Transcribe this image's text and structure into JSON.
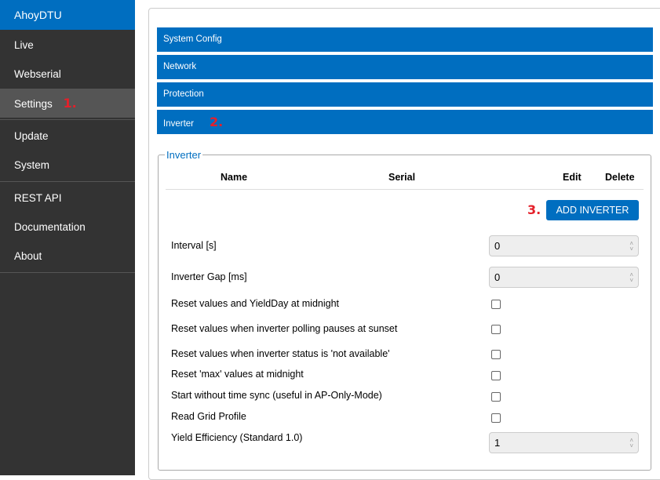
{
  "sidebar": {
    "brand": "AhoyDTU",
    "items": [
      {
        "label": "Live"
      },
      {
        "label": "Webserial"
      },
      {
        "label": "Settings",
        "step": "1."
      },
      {
        "label": "Update"
      },
      {
        "label": "System"
      },
      {
        "label": "REST API"
      },
      {
        "label": "Documentation"
      },
      {
        "label": "About"
      }
    ]
  },
  "sections": [
    {
      "label": "System Config"
    },
    {
      "label": "Network"
    },
    {
      "label": "Protection"
    },
    {
      "label": "Inverter",
      "step": "2."
    }
  ],
  "inverter": {
    "legend": "Inverter",
    "columns": [
      "Name",
      "Serial",
      "Edit",
      "Delete"
    ],
    "add_step": "3.",
    "add_label": "ADD INVERTER",
    "settings": [
      {
        "label": "Interval [s]",
        "value": "0"
      },
      {
        "label": "Inverter Gap [ms]",
        "value": "0"
      },
      {
        "label": "Reset values and YieldDay at midnight",
        "checked": false
      },
      {
        "label": "Reset values when inverter polling pauses at sunset",
        "checked": false
      },
      {
        "label": "Reset values when inverter status is 'not available'",
        "checked": false
      },
      {
        "label": "Reset 'max' values at midnight",
        "checked": false
      },
      {
        "label": "Start without time sync (useful in AP-Only-Mode)",
        "checked": false
      },
      {
        "label": "Read Grid Profile",
        "checked": false
      },
      {
        "label": "Yield Efficiency (Standard 1.0)",
        "value": "1"
      }
    ]
  },
  "colors": {
    "accent": "#006ec0",
    "sidebar": "#333333",
    "step": "#e4202a"
  }
}
